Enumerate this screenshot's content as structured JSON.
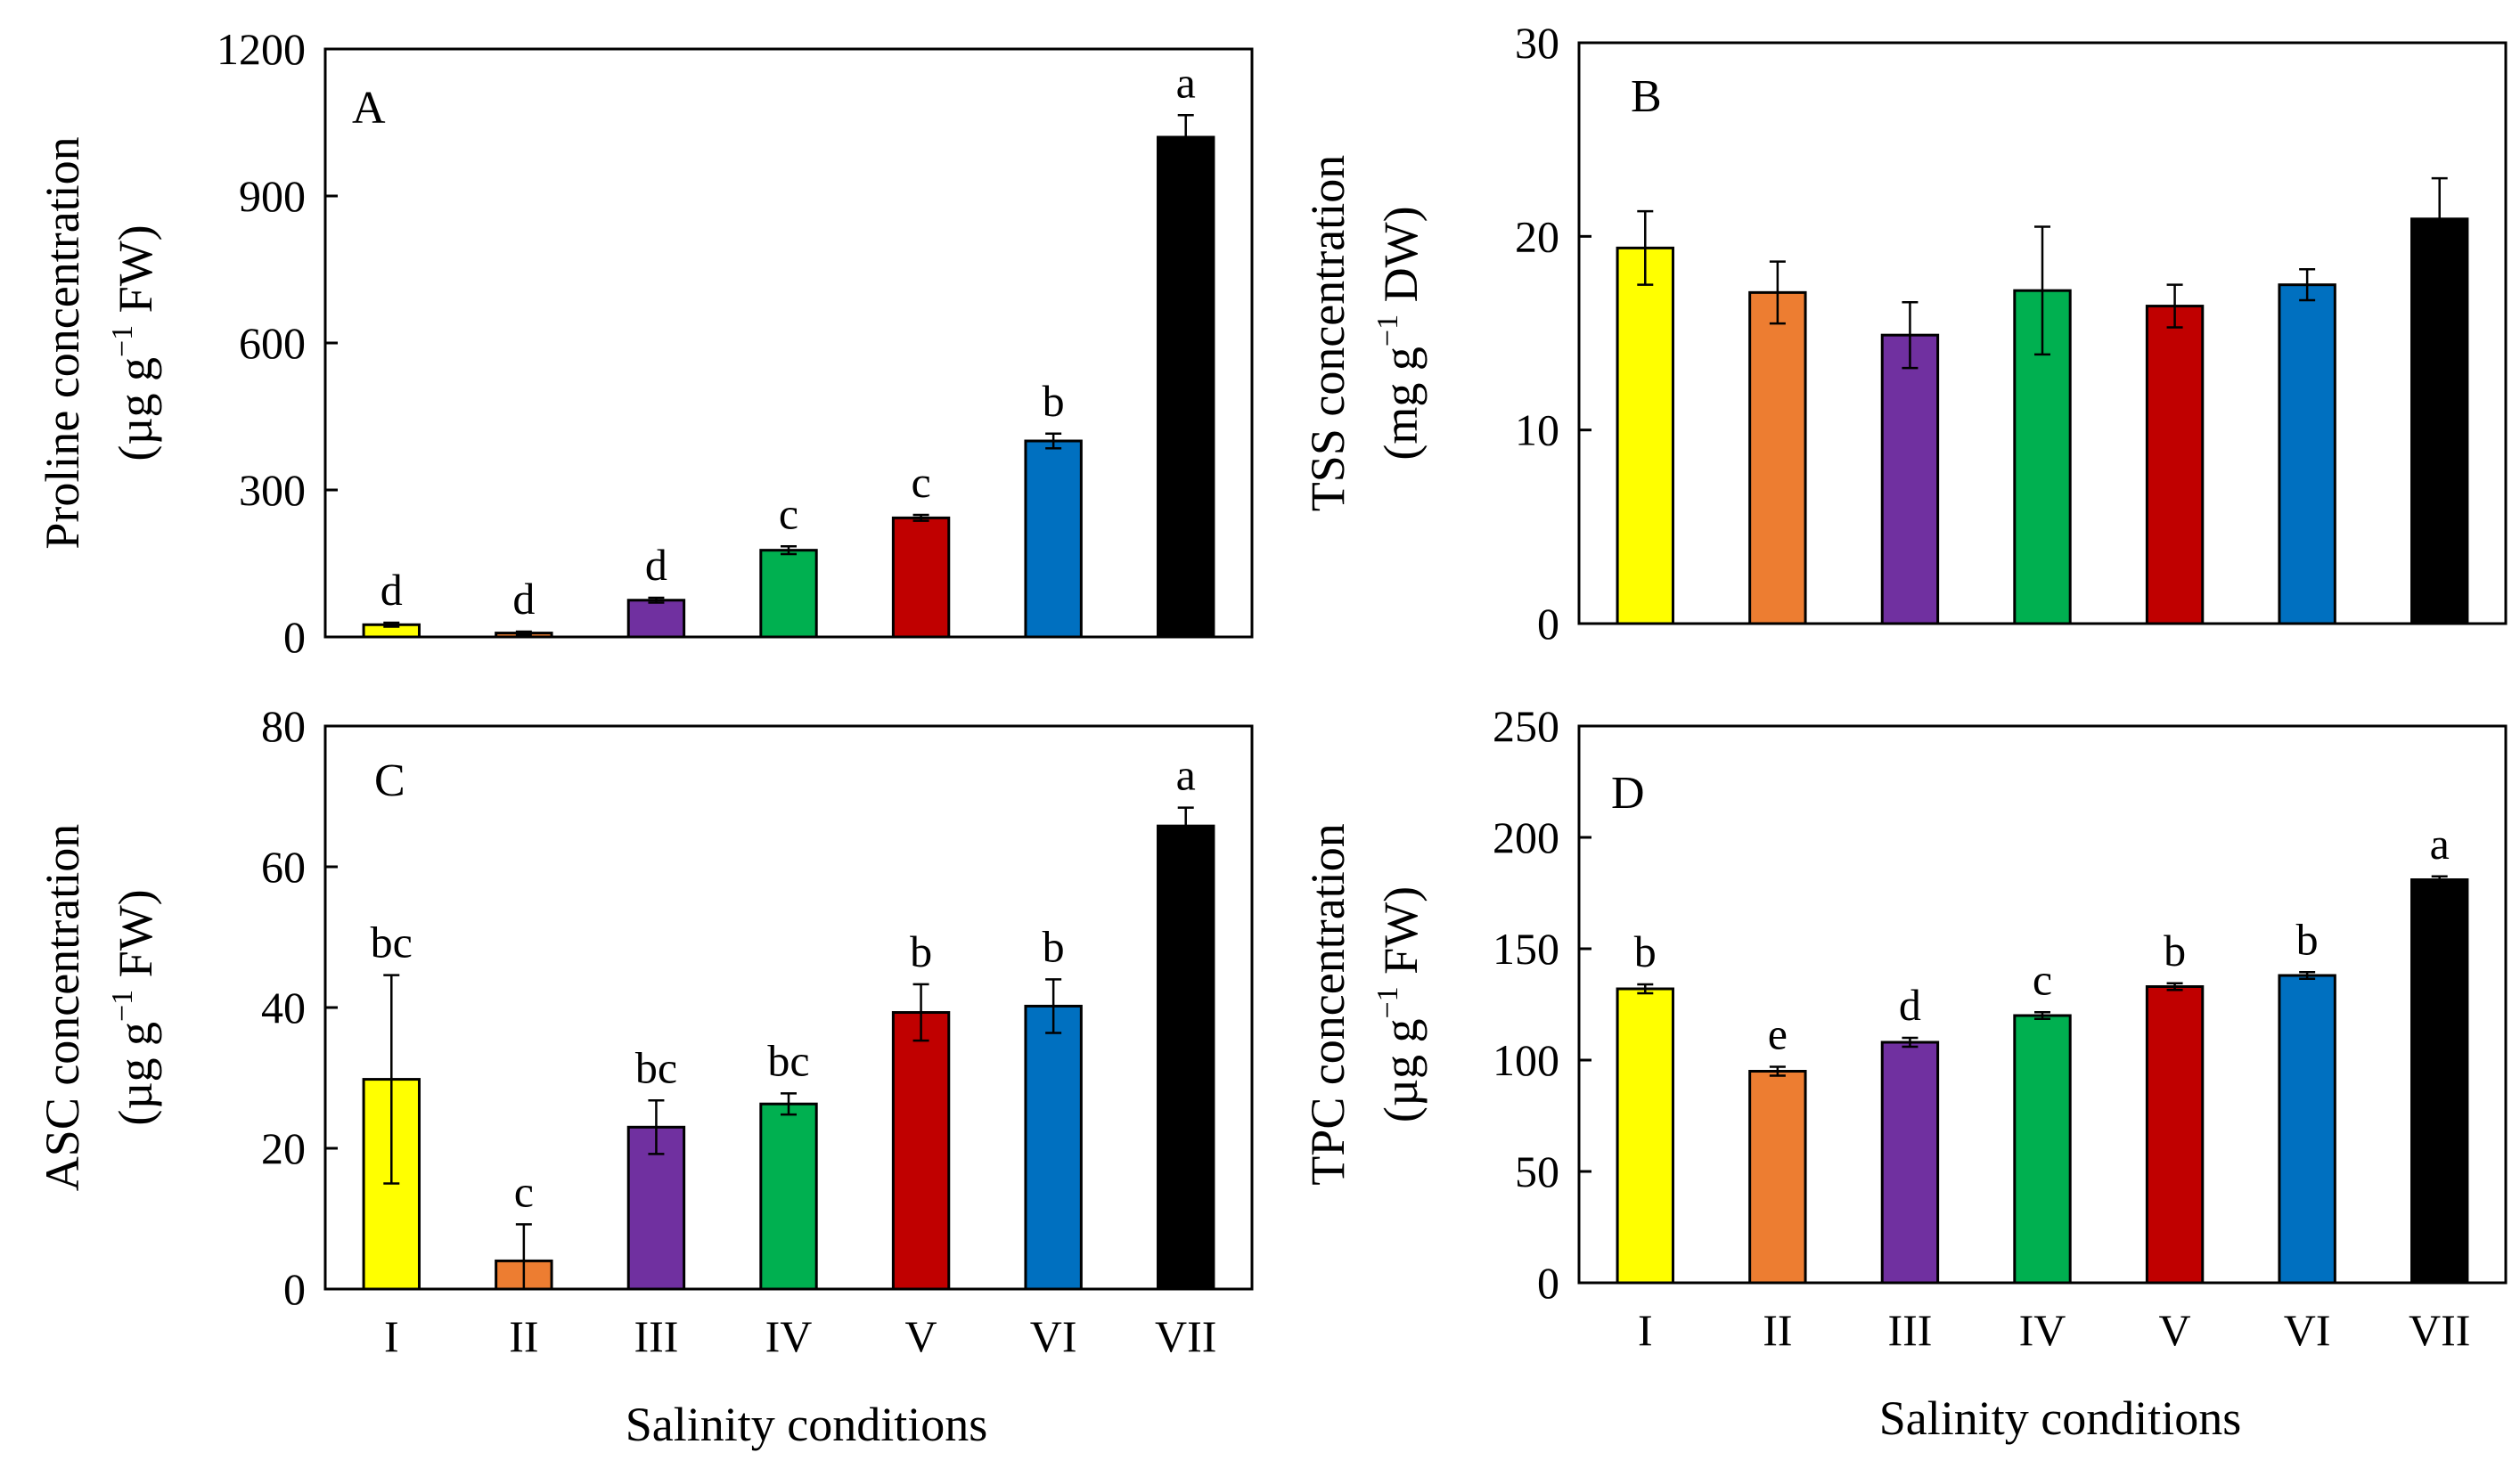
{
  "chart_data": [
    {
      "type": "bar",
      "panel": "A",
      "categories": [
        "I",
        "II",
        "III",
        "IV",
        "V",
        "VI",
        "VII"
      ],
      "values": [
        25,
        8,
        75,
        177,
        243,
        400,
        1020
      ],
      "errors": [
        4,
        3,
        5,
        8,
        6,
        15,
        45
      ],
      "significance": [
        "d",
        "d",
        "d",
        "c",
        "c",
        "b",
        "a"
      ],
      "colors": [
        "#FFFF00",
        "#ED7D31",
        "#7030A0",
        "#00B050",
        "#C00000",
        "#0070C0",
        "#000000"
      ],
      "ylabel_line1": "Proline  concentration",
      "ylabel_line2_pre": "(µg g",
      "ylabel_sup": "−1",
      "ylabel_line2_post": " FW)",
      "ylim": [
        0,
        1200
      ],
      "yticks": [
        0,
        300,
        600,
        900,
        1200
      ],
      "show_xticklabels": false,
      "xlabel": ""
    },
    {
      "type": "bar",
      "panel": "B",
      "categories": [
        "I",
        "II",
        "III",
        "IV",
        "V",
        "VI",
        "VII"
      ],
      "values": [
        19.4,
        17.1,
        14.9,
        17.2,
        16.4,
        17.5,
        20.9
      ],
      "errors": [
        1.9,
        1.6,
        1.7,
        3.3,
        1.1,
        0.8,
        2.1
      ],
      "significance": [
        "",
        "",
        "",
        "",
        "",
        "",
        ""
      ],
      "colors": [
        "#FFFF00",
        "#ED7D31",
        "#7030A0",
        "#00B050",
        "#C00000",
        "#0070C0",
        "#000000"
      ],
      "ylabel_line1": "TSS concentration",
      "ylabel_line2_pre": "(mg g",
      "ylabel_sup": "−1",
      "ylabel_line2_post": " DW)",
      "ylim": [
        0,
        30
      ],
      "yticks": [
        0,
        10,
        20,
        30
      ],
      "show_xticklabels": false,
      "xlabel": ""
    },
    {
      "type": "bar",
      "panel": "C",
      "categories": [
        "I",
        "II",
        "III",
        "IV",
        "V",
        "VI",
        "VII"
      ],
      "values": [
        29.8,
        4,
        23,
        26.3,
        39.3,
        40.2,
        65.8
      ],
      "errors": [
        14.8,
        5.2,
        3.8,
        1.5,
        4,
        3.8,
        2.6
      ],
      "significance": [
        "bc",
        "c",
        "bc",
        "bc",
        "b",
        "b",
        "a"
      ],
      "colors": [
        "#FFFF00",
        "#ED7D31",
        "#7030A0",
        "#00B050",
        "#C00000",
        "#0070C0",
        "#000000"
      ],
      "ylabel_line1": "ASC concentration",
      "ylabel_line2_pre": "(µg g",
      "ylabel_sup": "−1",
      "ylabel_line2_post": " FW)",
      "ylim": [
        0,
        80
      ],
      "yticks": [
        0,
        20,
        40,
        60,
        80
      ],
      "show_xticklabels": true,
      "xlabel": "Salinity conditions"
    },
    {
      "type": "bar",
      "panel": "D",
      "categories": [
        "I",
        "II",
        "III",
        "IV",
        "V",
        "VI",
        "VII"
      ],
      "values": [
        132,
        95,
        108,
        120,
        133,
        138,
        181
      ],
      "errors": [
        2,
        2,
        2,
        1.5,
        1.5,
        1.5,
        1.5
      ],
      "significance": [
        "b",
        "e",
        "d",
        "c",
        "b",
        "b",
        "a"
      ],
      "colors": [
        "#FFFF00",
        "#ED7D31",
        "#7030A0",
        "#00B050",
        "#C00000",
        "#0070C0",
        "#000000"
      ],
      "ylabel_line1": "TPC concentration",
      "ylabel_line2_pre": "(µg g",
      "ylabel_sup": "−1",
      "ylabel_line2_post": " FW)",
      "ylim": [
        0,
        250
      ],
      "yticks": [
        0,
        50,
        100,
        150,
        200,
        250
      ],
      "show_xticklabels": true,
      "xlabel": "Salinity conditions"
    }
  ]
}
